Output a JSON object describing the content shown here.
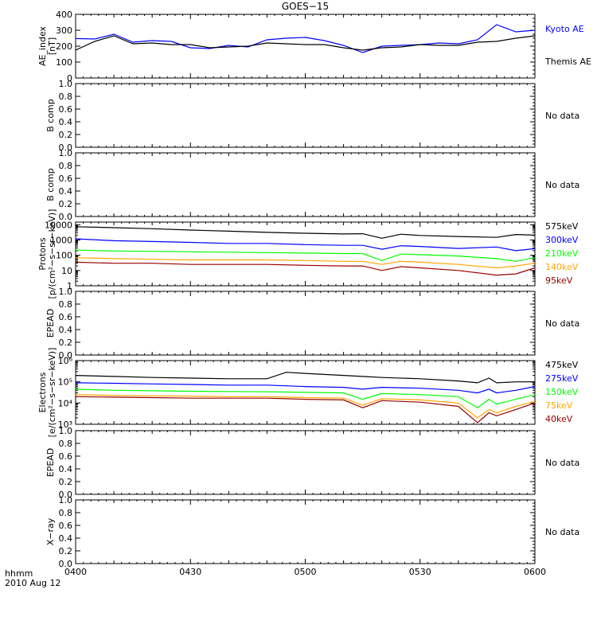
{
  "title": "GOES−15",
  "footer": {
    "time_label": "hhmm",
    "date_label": "2010 Aug 12"
  },
  "x_ticks": [
    "0400",
    "0430",
    "0500",
    "0530",
    "0600"
  ],
  "colors": {
    "black": "#000000",
    "blue": "#0000ff",
    "green": "#00ff00",
    "orange": "#ffa500",
    "darkred": "#990000"
  },
  "chart_data": [
    {
      "type": "line",
      "ylabel": [
        "AE_index",
        "[nT]"
      ],
      "ylim": [
        0,
        400
      ],
      "yticks": [
        "0",
        "100",
        "200",
        "300",
        "400"
      ],
      "x": [
        0,
        5,
        10,
        15,
        20,
        25,
        30,
        35,
        40,
        45,
        50,
        55,
        60,
        65,
        70,
        75,
        80,
        85,
        90,
        95,
        100,
        105,
        110,
        115,
        120
      ],
      "series": [
        {
          "name": "Kyoto AE",
          "color": "#0000ff",
          "values": [
            248,
            245,
            275,
            225,
            235,
            230,
            190,
            185,
            205,
            195,
            240,
            250,
            255,
            235,
            205,
            160,
            200,
            205,
            210,
            220,
            215,
            240,
            335,
            290,
            300
          ]
        },
        {
          "name": "Themis AE",
          "color": "#000000",
          "values": [
            175,
            230,
            265,
            215,
            220,
            210,
            210,
            190,
            195,
            200,
            220,
            215,
            210,
            210,
            190,
            175,
            190,
            195,
            210,
            205,
            205,
            225,
            230,
            250,
            265
          ]
        }
      ]
    },
    {
      "type": "line",
      "ylabel": [
        "B comp"
      ],
      "ylim": [
        0,
        1
      ],
      "yticks": [
        "0.0",
        "0.2",
        "0.4",
        "0.6",
        "0.8",
        "1.0"
      ],
      "series": [],
      "note": "No data"
    },
    {
      "type": "line",
      "ylabel": [
        "B comp"
      ],
      "ylim": [
        0,
        1
      ],
      "yticks": [
        "0.0",
        "0.2",
        "0.4",
        "0.6",
        "0.8",
        "1.0"
      ],
      "series": [],
      "note": "No data"
    },
    {
      "type": "line",
      "scale": "log",
      "ylabel": [
        "Protons",
        "[p/(cm²−s−sr−keV)]"
      ],
      "ylim": [
        1,
        15000
      ],
      "yticks": [
        "1",
        "10",
        "100",
        "1000",
        "10000"
      ],
      "yticks_values": [
        1,
        10,
        100,
        1000,
        10000
      ],
      "x": [
        0,
        10,
        20,
        30,
        40,
        50,
        60,
        70,
        75,
        80,
        85,
        90,
        100,
        110,
        115,
        120
      ],
      "series": [
        {
          "name": "575keV",
          "color": "#000000",
          "values": [
            7500,
            6500,
            5500,
            4500,
            3800,
            3200,
            2800,
            2500,
            2600,
            1300,
            2400,
            2000,
            1700,
            1500,
            2300,
            2100
          ]
        },
        {
          "name": "300keV",
          "color": "#0000ff",
          "values": [
            1200,
            900,
            800,
            700,
            600,
            600,
            500,
            450,
            450,
            250,
            420,
            380,
            280,
            350,
            200,
            270
          ]
        },
        {
          "name": "210keV",
          "color": "#00ff00",
          "values": [
            220,
            190,
            180,
            170,
            160,
            150,
            140,
            130,
            130,
            45,
            120,
            110,
            90,
            60,
            40,
            70
          ]
        },
        {
          "name": "140keV",
          "color": "#ffa500",
          "values": [
            70,
            60,
            55,
            50,
            50,
            50,
            45,
            40,
            40,
            25,
            40,
            35,
            25,
            15,
            20,
            30
          ]
        },
        {
          "name": "95keV",
          "color": "#990000",
          "values": [
            35,
            30,
            30,
            25,
            25,
            25,
            22,
            20,
            20,
            10,
            18,
            15,
            10,
            5,
            6,
            15
          ]
        }
      ],
      "legend_extra": []
    },
    {
      "type": "line",
      "ylabel": [
        "EPEAD"
      ],
      "ylim": [
        0,
        1
      ],
      "yticks": [
        "0.0",
        "0.2",
        "0.4",
        "0.6",
        "0.8",
        "1.0"
      ],
      "series": [],
      "note": "No data"
    },
    {
      "type": "line",
      "scale": "log",
      "ylabel": [
        "Electrons",
        "[e/(cm²−s−sr−keV)]"
      ],
      "ylim": [
        1000,
        1000000
      ],
      "yticks": [
        "10³",
        "10⁴",
        "10⁵",
        "10⁶"
      ],
      "yticks_values": [
        1000,
        10000,
        100000,
        1000000
      ],
      "x": [
        0,
        10,
        20,
        30,
        40,
        50,
        55,
        60,
        70,
        75,
        80,
        90,
        100,
        105,
        108,
        110,
        115,
        120
      ],
      "series": [
        {
          "name": "475keV",
          "color": "#000000",
          "values": [
            200000,
            180000,
            160000,
            150000,
            140000,
            140000,
            280000,
            250000,
            200000,
            180000,
            160000,
            140000,
            110000,
            90000,
            150000,
            90000,
            100000,
            100000
          ]
        },
        {
          "name": "275keV",
          "color": "#0000ff",
          "values": [
            90000,
            85000,
            80000,
            75000,
            70000,
            70000,
            65000,
            60000,
            55000,
            45000,
            55000,
            50000,
            40000,
            30000,
            45000,
            30000,
            40000,
            60000
          ]
        },
        {
          "name": "150keV",
          "color": "#00ff00",
          "values": [
            45000,
            40000,
            38000,
            36000,
            35000,
            34000,
            33000,
            32000,
            30000,
            15000,
            28000,
            25000,
            20000,
            6000,
            15000,
            9000,
            15000,
            25000
          ]
        },
        {
          "name": "75keV",
          "color": "#ffa500",
          "values": [
            25000,
            23000,
            22000,
            21000,
            20000,
            20000,
            19000,
            18000,
            17000,
            8000,
            16000,
            14000,
            10000,
            2000,
            5000,
            3500,
            7000,
            12000
          ]
        },
        {
          "name": "40keV",
          "color": "#990000",
          "values": [
            20000,
            19000,
            18000,
            17000,
            17000,
            17000,
            16000,
            15000,
            14000,
            6000,
            13000,
            11000,
            7000,
            1200,
            3500,
            2500,
            5000,
            10000
          ]
        }
      ]
    },
    {
      "type": "line",
      "ylabel": [
        "EPEAD"
      ],
      "ylim": [
        0,
        1
      ],
      "yticks": [
        "0.0",
        "0.2",
        "0.4",
        "0.6",
        "0.8",
        "1.0"
      ],
      "series": [],
      "note": "No data"
    },
    {
      "type": "line",
      "ylabel": [
        "X−ray"
      ],
      "ylim": [
        0,
        1
      ],
      "yticks": [
        "0.0",
        "0.2",
        "0.4",
        "0.6",
        "0.8",
        "1.0"
      ],
      "series": [],
      "note": "No data"
    }
  ]
}
